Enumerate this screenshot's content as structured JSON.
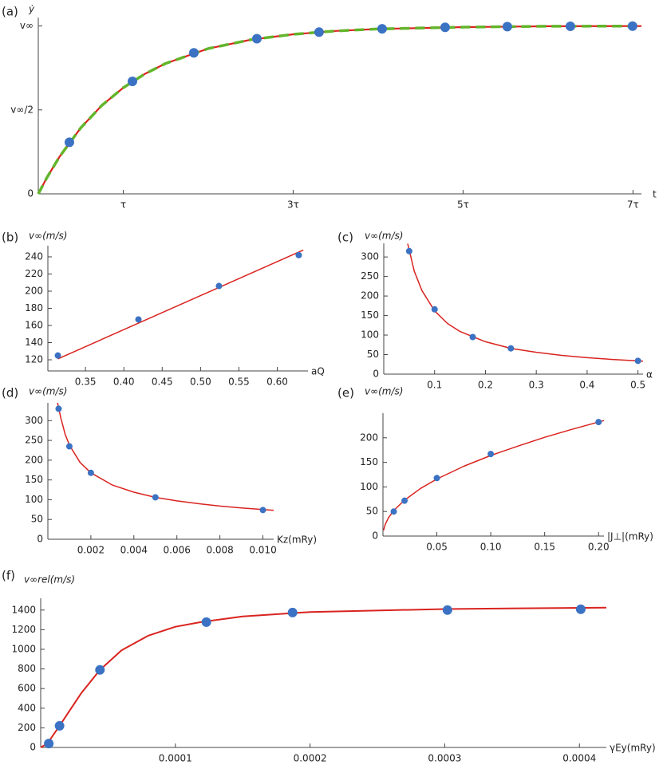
{
  "chart_data": [
    {
      "type": "scatter",
      "panel_label": "(a)",
      "y_label": "ẏ",
      "x_label": "t",
      "xlim": [
        0,
        7.1
      ],
      "ylim": [
        0,
        1.05
      ],
      "xticks": [
        {
          "value": 1,
          "label": "τ"
        },
        {
          "value": 3,
          "label": "3τ"
        },
        {
          "value": 5,
          "label": "5τ"
        },
        {
          "value": 7,
          "label": "7τ"
        }
      ],
      "yticks": [
        0,
        {
          "value": 0.5,
          "label": "v∞/2"
        },
        {
          "value": 1,
          "label": "v∞"
        }
      ],
      "series": [
        {
          "mode": "line",
          "color": "#d9231f",
          "x": [
            0,
            0.1,
            0.25,
            0.5,
            0.75,
            1,
            1.25,
            1.5,
            2,
            2.5,
            3,
            3.5,
            4,
            5,
            6,
            7.1
          ],
          "values": [
            0,
            0.095,
            0.221,
            0.393,
            0.528,
            0.632,
            0.713,
            0.777,
            0.865,
            0.918,
            0.95,
            0.97,
            0.982,
            0.993,
            0.998,
            0.999
          ]
        },
        {
          "mode": "line",
          "dash": true,
          "color": "#63b52b",
          "x": [
            0,
            0.1,
            0.25,
            0.5,
            0.75,
            1,
            1.25,
            1.5,
            2,
            2.5,
            3,
            3.5,
            4,
            5,
            6,
            7.1
          ],
          "values": [
            0,
            0.095,
            0.221,
            0.393,
            0.528,
            0.632,
            0.713,
            0.777,
            0.865,
            0.918,
            0.95,
            0.97,
            0.982,
            0.993,
            0.998,
            0.999
          ]
        },
        {
          "mode": "markers",
          "color": "#3b72c3",
          "x": [
            0.366,
            1.108,
            1.831,
            2.573,
            3.305,
            4.047,
            4.789,
            5.521,
            6.263,
            6.995
          ],
          "values": [
            0.307,
            0.67,
            0.84,
            0.924,
            0.963,
            0.983,
            0.992,
            0.996,
            0.998,
            0.999
          ]
        }
      ]
    },
    {
      "type": "scatter",
      "panel_label": "(b)",
      "y_label": "v∞(m/s)",
      "x_label": "aQ",
      "xlim": [
        0.301,
        0.64
      ],
      "ylim": [
        107,
        253
      ],
      "xticks": [
        0.35,
        {
          "value": 0.4,
          "label": "0.40"
        },
        0.45,
        {
          "value": 0.5,
          "label": "0.50"
        },
        0.55,
        {
          "value": 0.6,
          "label": "0.60"
        }
      ],
      "yticks": [
        120,
        140,
        160,
        180,
        200,
        220,
        240
      ],
      "series": [
        {
          "mode": "line",
          "color": "#d9231f",
          "x": [
            0.314,
            0.634
          ],
          "values": [
            121,
            248
          ]
        },
        {
          "mode": "markers",
          "color": "#3b72c3",
          "x": [
            0.314,
            0.419,
            0.524,
            0.628
          ],
          "values": [
            125,
            167,
            206,
            242
          ]
        }
      ]
    },
    {
      "type": "scatter",
      "panel_label": "(c)",
      "y_label": "v∞(m/s)",
      "x_label": "α",
      "xlim": [
        0,
        0.51
      ],
      "ylim": [
        0,
        335
      ],
      "xticks": [
        0.1,
        0.2,
        0.3,
        0.4,
        0.5
      ],
      "yticks": [
        0,
        50,
        100,
        150,
        200,
        250,
        300
      ],
      "series": [
        {
          "mode": "line",
          "color": "#d9231f",
          "x": [
            0.047,
            0.06,
            0.075,
            0.1,
            0.125,
            0.15,
            0.2,
            0.25,
            0.3,
            0.35,
            0.4,
            0.45,
            0.51
          ],
          "values": [
            334,
            264,
            214,
            162,
            130,
            109,
            83,
            66,
            56,
            48,
            42,
            37.5,
            33
          ]
        },
        {
          "mode": "markers",
          "color": "#3b72c3",
          "x": [
            0.05,
            0.1,
            0.175,
            0.25,
            0.5
          ],
          "values": [
            315,
            166,
            95,
            66,
            34
          ]
        }
      ]
    },
    {
      "type": "scatter",
      "panel_label": "(d)",
      "y_label": "v∞(m/s)",
      "x_label": "Kz(mRy)",
      "xlim": [
        0,
        0.0105
      ],
      "ylim": [
        0,
        345
      ],
      "xticks": [
        0.002,
        0.004,
        0.006,
        0.008,
        {
          "value": 0.01,
          "label": "0.010"
        }
      ],
      "yticks": [
        0,
        50,
        100,
        150,
        200,
        250,
        300
      ],
      "series": [
        {
          "mode": "line",
          "color": "#d9231f",
          "x": [
            0.00045,
            0.0006,
            0.0008,
            0.001,
            0.0015,
            0.002,
            0.003,
            0.004,
            0.005,
            0.006,
            0.007,
            0.008,
            0.009,
            0.0105
          ],
          "values": [
            345,
            307,
            266,
            238,
            194,
            168,
            137,
            119,
            106,
            97,
            90,
            84,
            79,
            73
          ]
        },
        {
          "mode": "markers",
          "color": "#3b72c3",
          "x": [
            0.0005,
            0.001,
            0.002,
            0.005,
            0.01
          ],
          "values": [
            330,
            235,
            168,
            106,
            74
          ]
        }
      ]
    },
    {
      "type": "scatter",
      "panel_label": "(e)",
      "y_label": "v∞(m/s)",
      "x_label": "|J⊥|(mRy)",
      "xlim": [
        0,
        0.205
      ],
      "ylim": [
        0,
        250
      ],
      "xticks": [
        0.05,
        {
          "value": 0.1,
          "label": "0.10"
        },
        0.15,
        {
          "value": 0.2,
          "label": "0.20"
        }
      ],
      "yticks": [
        0,
        50,
        100,
        150,
        200
      ],
      "series": [
        {
          "mode": "line",
          "color": "#d9231f",
          "x": [
            0.0005,
            0.002,
            0.005,
            0.01,
            0.02,
            0.035,
            0.05,
            0.075,
            0.1,
            0.125,
            0.15,
            0.175,
            0.205
          ],
          "values": [
            11.6,
            23,
            37,
            52,
            73,
            97,
            116,
            142,
            164,
            183,
            201,
            217,
            235
          ]
        },
        {
          "mode": "markers",
          "color": "#3b72c3",
          "x": [
            0.01,
            0.02,
            0.05,
            0.1,
            0.2
          ],
          "values": [
            50,
            72,
            118,
            167,
            232
          ]
        }
      ]
    },
    {
      "type": "scatter",
      "panel_label": "(f)",
      "y_label": "v∞rel(m/s)",
      "x_label": "γEy(mRy)",
      "xlim": [
        0,
        0.00042
      ],
      "ylim": [
        0,
        1520
      ],
      "xticks": [
        0.0001,
        0.0002,
        0.0003,
        0.0004
      ],
      "yticks": [
        0,
        200,
        400,
        600,
        800,
        1000,
        1200,
        1400
      ],
      "series": [
        {
          "mode": "line",
          "color": "#d9231f",
          "x": [
            0,
            5e-06,
            1.4e-05,
            3e-05,
            4.4e-05,
            6e-05,
            8e-05,
            0.0001,
            0.00012,
            0.00015,
            0.0002,
            0.0003,
            0.00042
          ],
          "values": [
            0,
            40,
            220,
            550,
            790,
            990,
            1140,
            1230,
            1280,
            1335,
            1380,
            1410,
            1425
          ]
        },
        {
          "mode": "markers",
          "color": "#3b72c3",
          "x": [
            6e-06,
            1.4e-05,
            4.4e-05,
            0.000123,
            0.000187,
            0.000302,
            0.000401
          ],
          "values": [
            40,
            220,
            790,
            1277,
            1375,
            1400,
            1408
          ]
        }
      ]
    }
  ]
}
